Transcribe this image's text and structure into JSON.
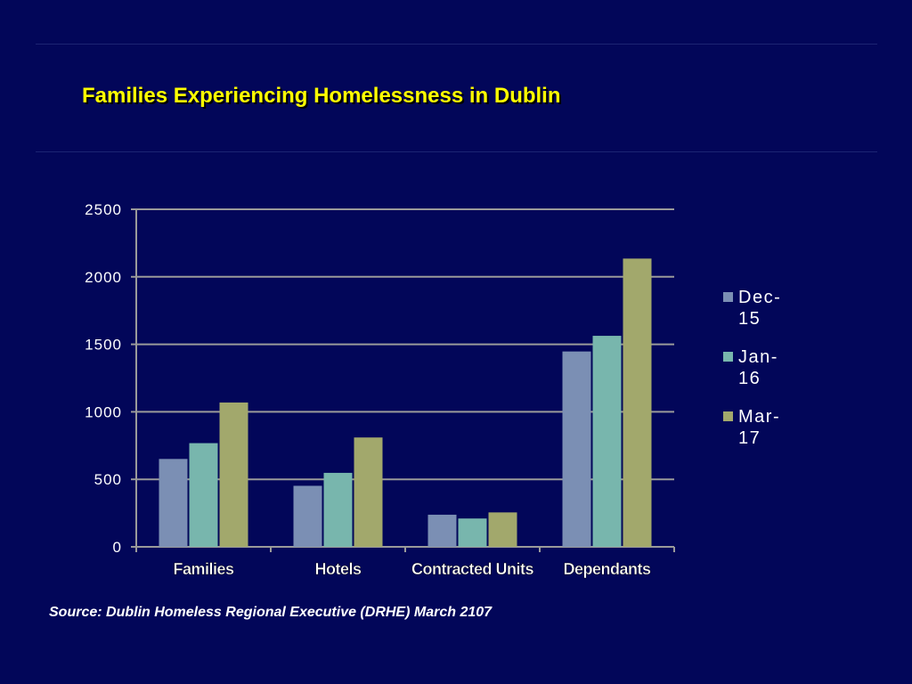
{
  "title": "Families Experiencing Homelessness in Dublin",
  "source": "Source:  Dublin Homeless Regional Executive (DRHE)  March 2107",
  "chart_data": {
    "type": "bar",
    "categories": [
      "Families",
      "Hotels",
      "Contracted Units",
      "Dependants"
    ],
    "series": [
      {
        "name": "Dec-15",
        "label_lines": [
          "Dec-",
          "15"
        ],
        "color": "#7b8fb4",
        "values": [
          651,
          452,
          238,
          1447
        ]
      },
      {
        "name": "Jan-16",
        "label_lines": [
          "Jan-",
          "16"
        ],
        "color": "#78b6ad",
        "values": [
          768,
          548,
          210,
          1563
        ]
      },
      {
        "name": "Mar-17",
        "label_lines": [
          "Mar-",
          "17"
        ],
        "color": "#a2a86c",
        "values": [
          1069,
          810,
          255,
          2135
        ]
      }
    ],
    "yticks": [
      0,
      500,
      1000,
      1500,
      2000,
      2500
    ],
    "ylim": [
      0,
      2500
    ],
    "xlabel": "",
    "ylabel": "",
    "grid": true,
    "legend": "right"
  }
}
